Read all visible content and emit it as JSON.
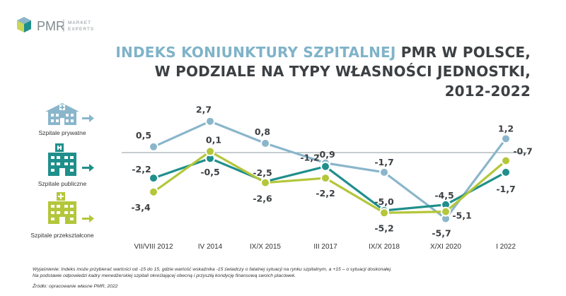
{
  "brand": {
    "name": "PMR",
    "tag_line1": "MARKET",
    "tag_line2": "EXPERTS"
  },
  "title": {
    "line1_accent": "INDEKS KONIUNKTURY SZPITALNEJ",
    "line1_rest": " PMR W POLSCE,",
    "line2": "W PODZIALE NA TYPY WŁASNOŚCI JEDNOSTKI,",
    "line3": "2012-2022"
  },
  "legend": [
    {
      "label": "Szpitale prywatne",
      "color": "#8ab6cb",
      "icon": "private-hospital-icon"
    },
    {
      "label": "Szpitale publiczne",
      "color": "#1f8f8c",
      "icon": "public-hospital-icon"
    },
    {
      "label": "Szpitale przekształcone",
      "color": "#b4c63a",
      "icon": "converted-hospital-icon"
    }
  ],
  "chart_data": {
    "type": "line",
    "categories": [
      "VII/VIII 2012",
      "IV 2014",
      "IX/X 2015",
      "III 2017",
      "IX/X 2018",
      "X/XI 2020",
      "I 2022"
    ],
    "series": [
      {
        "name": "Szpitale prywatne",
        "color": "#8ab6cb",
        "values": [
          0.5,
          2.7,
          0.8,
          -0.9,
          -1.7,
          -5.7,
          1.2
        ],
        "labels": [
          "0,5",
          "2,7",
          "0,8",
          "-0,9",
          "-1,7",
          "-5,7",
          "1,2"
        ]
      },
      {
        "name": "Szpitale publiczne",
        "color": "#1f8f8c",
        "values": [
          -2.2,
          -0.5,
          -2.5,
          -1.2,
          -5.0,
          -4.5,
          -1.7
        ],
        "labels": [
          "-2,2",
          "-0,5",
          "-2,5",
          "-1,2",
          "-5,0",
          "-4,5",
          "-1,7"
        ]
      },
      {
        "name": "Szpitale przekształcone",
        "color": "#b4c63a",
        "values": [
          -3.4,
          0.1,
          -2.6,
          -2.2,
          -5.2,
          -5.1,
          -0.7
        ],
        "labels": [
          "-3,4",
          "0,1",
          "-2,6",
          "-2,2",
          "-5,2",
          "-5,1",
          "-0,7"
        ]
      }
    ],
    "zero_line": true,
    "grid": false
  },
  "footnote": {
    "line1": "Wyjaśnienie: Indeks może przybierać wartości od -15 do 15, gdzie wartość wskaźnika -15 świadczy o fatalnej sytuacji na rynku szpitalnym, a +15 – o sytuacji doskonałej.",
    "line2": "Na podstawie odpowiedzi kadry menedżerskiej szpitali określającej obecną i przyszłą kondycję finansową swoich placówek.",
    "source": "Źródło: opracowanie własne PMR, 2022"
  }
}
